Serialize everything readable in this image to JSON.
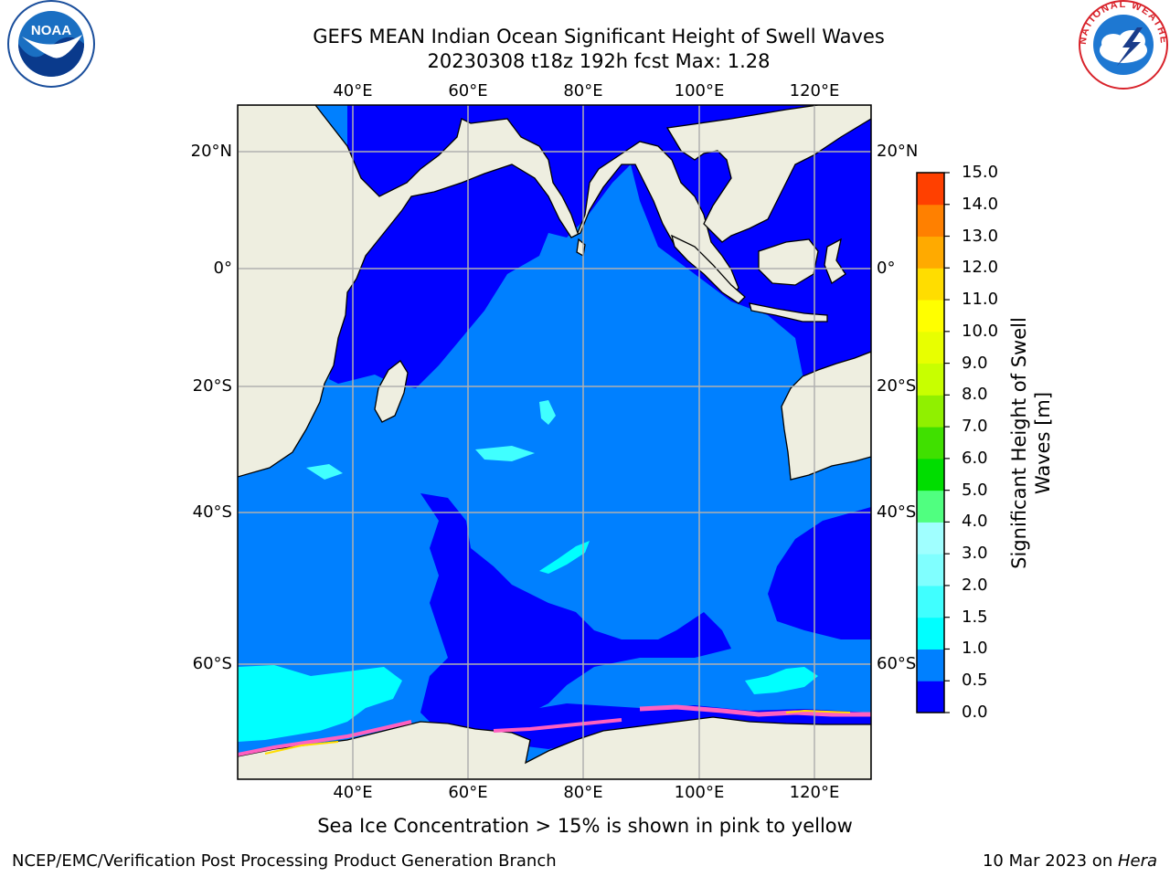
{
  "title": {
    "line1": "GEFS MEAN Indian Ocean Significant Height of Swell Waves",
    "line2": "20230308 t18z 192h fcst   Max: 1.28"
  },
  "map": {
    "lon_ticks": [
      "40°E",
      "60°E",
      "80°E",
      "100°E",
      "120°E"
    ],
    "lat_ticks": [
      "20°N",
      "0°",
      "20°S",
      "40°S",
      "60°S"
    ],
    "colors": {
      "land": "#EEEEE0",
      "deep_blue": "#0000FF",
      "mid_blue": "#0080FF",
      "cyan": "#00FFFF",
      "grid": "#B0B0B0"
    }
  },
  "colorbar": {
    "label": "Significant Height of Swell Waves [m]",
    "ticks": [
      "0.0",
      "0.5",
      "1.0",
      "1.5",
      "2.0",
      "3.0",
      "4.0",
      "5.0",
      "6.0",
      "7.0",
      "8.0",
      "9.0",
      "10.0",
      "11.0",
      "12.0",
      "13.0",
      "14.0",
      "15.0"
    ],
    "colors": [
      "#0000FF",
      "#0080FF",
      "#00FFFF",
      "#40FFFF",
      "#80FFFF",
      "#A0FFFF",
      "#50FF80",
      "#00DD00",
      "#40E000",
      "#90F000",
      "#C8FF00",
      "#E8FF00",
      "#FFFF00",
      "#FFDD00",
      "#FFAA00",
      "#FF8000",
      "#FF4000",
      "#FF0000"
    ]
  },
  "caption": "Sea Ice Concentration > 15% is shown in pink to yellow",
  "footer": {
    "left": "NCEP/EMC/Verification Post Processing Product Generation Branch",
    "date": "10 Mar 2023 on ",
    "host": "Hera"
  },
  "logos": {
    "noaa_text": "NOAA",
    "nws_text": "NATIONAL WEATHER SERVICE"
  }
}
